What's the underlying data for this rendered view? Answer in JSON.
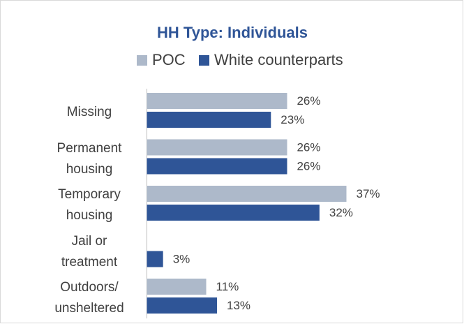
{
  "chart_data": {
    "type": "bar",
    "orientation": "horizontal",
    "title": "HH Type: Individuals",
    "categories": [
      "Missing",
      "Permanent housing",
      "Temporary housing",
      "Jail or treatment",
      "Outdoors/ unsheltered"
    ],
    "series": [
      {
        "name": "POC",
        "color": "#adb9ca",
        "values": [
          26,
          26,
          37,
          null,
          11
        ],
        "value_labels": [
          "26%",
          "26%",
          "37%",
          null,
          "11%"
        ]
      },
      {
        "name": "White counterparts",
        "color": "#2f5597",
        "values": [
          23,
          26,
          32,
          3,
          13
        ],
        "value_labels": [
          "23%",
          "26%",
          "32%",
          "3%",
          "13%"
        ]
      }
    ],
    "legend": "top"
  }
}
